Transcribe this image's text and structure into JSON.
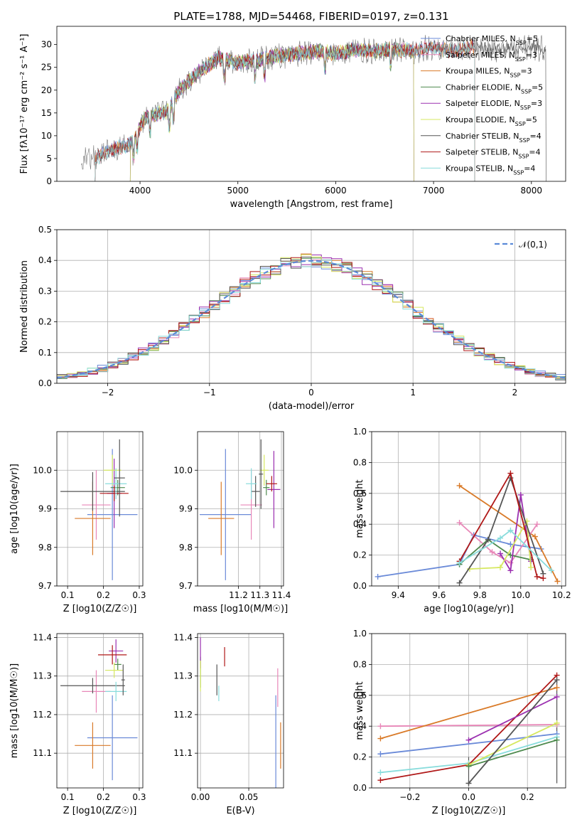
{
  "title": "PLATE=1788, MJD=54468, FIBERID=0197, z=0.131",
  "colors": {
    "Chabrier MILES": "#6a8ad8",
    "Salpeter MILES": "#e887b8",
    "Kroupa MILES": "#d97a28",
    "Chabrier ELODIE": "#4e8a4e",
    "Salpeter ELODIE": "#9b30b0",
    "Kroupa ELODIE": "#d6e860",
    "Chabrier STELIB": "#555555",
    "Salpeter STELIB": "#b01818",
    "Kroupa STELIB": "#88dcdc"
  },
  "chart_data": [
    {
      "id": "spectrum",
      "type": "line",
      "xlabel": "wavelength [Angstrom, rest frame]",
      "ylabel": "Flux [fλ10⁻¹⁷ erg cm⁻² s⁻¹ A⁻¹]",
      "xlim": [
        3150,
        8350
      ],
      "ylim": [
        0,
        34
      ],
      "xticks": [
        4000,
        5000,
        6000,
        7000,
        8000
      ],
      "yticks": [
        0,
        5,
        10,
        15,
        20,
        25,
        30
      ],
      "grid": false,
      "legend": "top-right",
      "continuum": [
        [
          3400,
          5.5
        ],
        [
          3550,
          5.0
        ],
        [
          3650,
          6.5
        ],
        [
          3800,
          7.5
        ],
        [
          3900,
          8.0
        ],
        [
          3950,
          9.5
        ],
        [
          4050,
          14.0
        ],
        [
          4300,
          15.5
        ],
        [
          4400,
          20.0
        ],
        [
          4600,
          24.0
        ],
        [
          4800,
          27.0
        ],
        [
          5000,
          26.0
        ],
        [
          5200,
          26.5
        ],
        [
          5400,
          27.5
        ],
        [
          5600,
          28.0
        ],
        [
          5800,
          28.5
        ],
        [
          6000,
          28.0
        ],
        [
          6200,
          28.8
        ],
        [
          6400,
          28.5
        ],
        [
          6600,
          29.0
        ],
        [
          6800,
          28.5
        ],
        [
          7000,
          29.5
        ],
        [
          7200,
          28.5
        ],
        [
          7400,
          29.5
        ],
        [
          7600,
          28.8
        ],
        [
          7800,
          29.0
        ],
        [
          8000,
          29.5
        ],
        [
          8150,
          29.0
        ]
      ],
      "series": [
        {
          "name": "Chabrier MILES, N_SSP=5",
          "start": 3540,
          "end": 7420
        },
        {
          "name": "Salpeter MILES, N_SSP=3",
          "start": 3540,
          "end": 7420
        },
        {
          "name": "Kroupa MILES, N_SSP=3",
          "start": 3540,
          "end": 7420
        },
        {
          "name": "Chabrier ELODIE, N_SSP=5",
          "start": 3900,
          "end": 6800
        },
        {
          "name": "Salpeter ELODIE, N_SSP=3",
          "start": 3900,
          "end": 6800
        },
        {
          "name": "Kroupa ELODIE, N_SSP=5",
          "start": 3900,
          "end": 6800
        },
        {
          "name": "Chabrier STELIB, N_SSP=4",
          "start": 3540,
          "end": 8150
        },
        {
          "name": "Salpeter STELIB, N_SSP=4",
          "start": 3540,
          "end": 7420
        },
        {
          "name": "Kroupa STELIB, N_SSP=4",
          "start": 3540,
          "end": 7420
        }
      ]
    },
    {
      "id": "residuals",
      "type": "histogram",
      "xlabel": "(data-model)/error",
      "ylabel": "Normed distribution",
      "xlim": [
        -2.5,
        2.5
      ],
      "ylim": [
        0,
        0.5
      ],
      "xticks": [
        -2,
        -1,
        0,
        1,
        2
      ],
      "yticks": [
        0.0,
        0.1,
        0.2,
        0.3,
        0.4,
        0.5
      ],
      "grid": true,
      "legend": "top-right",
      "reference": {
        "name": "𝒩(0,1)",
        "mean": 0,
        "sigma": 1
      }
    },
    {
      "id": "age-vs-Z",
      "type": "errorbar",
      "xlabel": "Z [log10(Z/Z☉)]",
      "ylabel": "age [log10(age/yr)]",
      "xlim": [
        0.07,
        0.31
      ],
      "ylim": [
        9.7,
        10.1
      ],
      "xticks": [
        0.1,
        0.2,
        0.3
      ],
      "yticks": [
        9.7,
        9.8,
        9.9,
        10.0
      ],
      "grid": true,
      "points": [
        {
          "model": "Chabrier MILES",
          "x": 0.225,
          "xerr": 0.07,
          "y": 9.885,
          "yerr": 0.17
        },
        {
          "model": "Salpeter MILES",
          "x": 0.18,
          "xerr": 0.04,
          "y": 9.91,
          "yerr": 0.09
        },
        {
          "model": "Kroupa MILES",
          "x": 0.17,
          "xerr": 0.05,
          "y": 9.875,
          "yerr": 0.095
        },
        {
          "model": "Chabrier ELODIE",
          "x": 0.24,
          "xerr": 0.02,
          "y": 9.955,
          "yerr": 0.02
        },
        {
          "model": "Salpeter ELODIE",
          "x": 0.23,
          "xerr": 0.02,
          "y": 9.94,
          "yerr": 0.09
        },
        {
          "model": "Kroupa ELODIE",
          "x": 0.225,
          "xerr": 0.025,
          "y": 10.0,
          "yerr": 0.04
        },
        {
          "model": "Chabrier STELIB",
          "x": 0.17,
          "xerr": 0.09,
          "y": 9.945,
          "yerr": 0.05
        },
        {
          "model": "Salpeter STELIB",
          "x": 0.23,
          "xerr": 0.04,
          "y": 9.94,
          "yerr": 0.02
        },
        {
          "model": "Kroupa STELIB",
          "x": 0.235,
          "xerr": 0.03,
          "y": 9.965,
          "yerr": 0.04
        },
        {
          "model": "Chabrier STELIB",
          "x": 0.245,
          "xerr": 0.015,
          "y": 9.98,
          "yerr": 0.1
        }
      ]
    },
    {
      "id": "age-vs-mass",
      "type": "errorbar",
      "xlabel": "mass [log10(M/M☉)]",
      "ylabel": "",
      "xlim": [
        11.01,
        11.41
      ],
      "ylim": [
        9.7,
        10.1
      ],
      "xticks": [
        11.2,
        11.3,
        11.4
      ],
      "yticks": [
        9.7,
        9.8,
        9.9,
        10.0
      ],
      "grid": true,
      "points": [
        {
          "model": "Chabrier MILES",
          "x": 11.14,
          "xerr": 0.12,
          "y": 9.885,
          "yerr": 0.17
        },
        {
          "model": "Salpeter MILES",
          "x": 11.26,
          "xerr": 0.05,
          "y": 9.91,
          "yerr": 0.09
        },
        {
          "model": "Kroupa MILES",
          "x": 11.12,
          "xerr": 0.06,
          "y": 9.875,
          "yerr": 0.095
        },
        {
          "model": "Chabrier ELODIE",
          "x": 11.33,
          "xerr": 0.015,
          "y": 9.955,
          "yerr": 0.02
        },
        {
          "model": "Salpeter ELODIE",
          "x": 11.365,
          "xerr": 0.03,
          "y": 9.95,
          "yerr": 0.1
        },
        {
          "model": "Kroupa ELODIE",
          "x": 11.32,
          "xerr": 0.02,
          "y": 10.0,
          "yerr": 0.04
        },
        {
          "model": "Chabrier STELIB",
          "x": 11.28,
          "xerr": 0.02,
          "y": 9.945,
          "yerr": 0.04
        },
        {
          "model": "Salpeter STELIB",
          "x": 11.355,
          "xerr": 0.025,
          "y": 9.965,
          "yerr": 0.02
        },
        {
          "model": "Kroupa STELIB",
          "x": 11.26,
          "xerr": 0.025,
          "y": 9.965,
          "yerr": 0.04
        },
        {
          "model": "Chabrier STELIB",
          "x": 11.305,
          "xerr": 0.01,
          "y": 9.99,
          "yerr": 0.09
        }
      ]
    },
    {
      "id": "weights-vs-age",
      "type": "line",
      "xlabel": "age [log10(age/yr)]",
      "ylabel": "mass weight",
      "xlim": [
        9.27,
        10.22
      ],
      "ylim": [
        0,
        1
      ],
      "xticks": [
        9.4,
        9.6,
        9.8,
        10.0,
        10.2
      ],
      "yticks": [
        0.0,
        0.2,
        0.4,
        0.6,
        0.8,
        1.0
      ],
      "grid": true,
      "series": [
        {
          "model": "Chabrier MILES",
          "x": [
            9.3,
            9.7,
            9.77,
            9.95,
            10.1
          ],
          "y": [
            0.06,
            0.14,
            0.33,
            0.27,
            0.24
          ]
        },
        {
          "model": "Kroupa MILES",
          "x": [
            9.7,
            10.07,
            10.18
          ],
          "y": [
            0.65,
            0.32,
            0.03
          ]
        },
        {
          "model": "Salpeter MILES",
          "x": [
            9.7,
            9.86,
            9.95,
            10.08
          ],
          "y": [
            0.41,
            0.22,
            0.15,
            0.4
          ]
        },
        {
          "model": "Chabrier ELODIE",
          "x": [
            9.7,
            9.84,
            9.95,
            10.05
          ],
          "y": [
            0.14,
            0.3,
            0.2,
            0.17
          ]
        },
        {
          "model": "Salpeter ELODIE",
          "x": [
            9.9,
            9.95,
            10.0,
            10.05
          ],
          "y": [
            0.21,
            0.1,
            0.59,
            0.16
          ]
        },
        {
          "model": "Kroupa ELODIE",
          "x": [
            9.75,
            9.9,
            10.03,
            10.05
          ],
          "y": [
            0.11,
            0.12,
            0.42,
            0.12
          ]
        },
        {
          "model": "Chabrier STELIB",
          "x": [
            9.7,
            9.84,
            9.95,
            10.11
          ],
          "y": [
            0.02,
            0.3,
            0.7,
            0.08
          ]
        },
        {
          "model": "Salpeter STELIB",
          "x": [
            9.7,
            9.95,
            10.08,
            10.11
          ],
          "y": [
            0.16,
            0.73,
            0.06,
            0.05
          ]
        },
        {
          "model": "Kroupa STELIB",
          "x": [
            9.7,
            9.9,
            9.95,
            10.15
          ],
          "y": [
            0.15,
            0.31,
            0.36,
            0.1
          ]
        }
      ]
    },
    {
      "id": "mass-vs-Z",
      "type": "errorbar",
      "xlabel": "Z [log10(Z/Z☉)]",
      "ylabel": "mass [log10(M/M☉)]",
      "xlim": [
        0.07,
        0.31
      ],
      "ylim": [
        11.01,
        11.41
      ],
      "xticks": [
        0.1,
        0.2,
        0.3
      ],
      "yticks": [
        11.1,
        11.2,
        11.3,
        11.4
      ],
      "grid": true,
      "points": [
        {
          "model": "Chabrier MILES",
          "x": 0.225,
          "xerr": 0.07,
          "y": 11.14,
          "yerr": 0.11
        },
        {
          "model": "Salpeter MILES",
          "x": 0.18,
          "xerr": 0.04,
          "y": 11.26,
          "yerr": 0.055
        },
        {
          "model": "Kroupa MILES",
          "x": 0.17,
          "xerr": 0.05,
          "y": 11.12,
          "yerr": 0.06
        },
        {
          "model": "Chabrier ELODIE",
          "x": 0.24,
          "xerr": 0.01,
          "y": 11.33,
          "yerr": 0.015
        },
        {
          "model": "Salpeter ELODIE",
          "x": 0.235,
          "xerr": 0.02,
          "y": 11.365,
          "yerr": 0.03
        },
        {
          "model": "Kroupa ELODIE",
          "x": 0.23,
          "xerr": 0.025,
          "y": 11.315,
          "yerr": 0.02
        },
        {
          "model": "Chabrier STELIB",
          "x": 0.17,
          "xerr": 0.09,
          "y": 11.275,
          "yerr": 0.02
        },
        {
          "model": "Salpeter STELIB",
          "x": 0.225,
          "xerr": 0.04,
          "y": 11.355,
          "yerr": 0.025
        },
        {
          "model": "Kroupa STELIB",
          "x": 0.235,
          "xerr": 0.03,
          "y": 11.26,
          "yerr": 0.025
        },
        {
          "model": "Chabrier STELIB",
          "x": 0.255,
          "xerr": 0.005,
          "y": 11.29,
          "yerr": 0.04
        }
      ]
    },
    {
      "id": "mass-vs-EBV",
      "type": "errorbar",
      "xlabel": "E(B-V)",
      "ylabel": "",
      "xlim": [
        -0.003,
        0.086
      ],
      "ylim": [
        11.01,
        11.41
      ],
      "xticks": [
        0.0,
        0.05
      ],
      "yticks": [
        11.1,
        11.2,
        11.3,
        11.4
      ],
      "grid": true,
      "points": [
        {
          "model": "Chabrier MILES",
          "x": 0.078,
          "xerr": 0,
          "y": 11.13,
          "yerr": 0.12
        },
        {
          "model": "Salpeter MILES",
          "x": 0.08,
          "xerr": 0,
          "y": 11.27,
          "yerr": 0.05
        },
        {
          "model": "Kroupa MILES",
          "x": 0.083,
          "xerr": 0,
          "y": 11.12,
          "yerr": 0.06
        },
        {
          "model": "Chabrier ELODIE",
          "x": 0.0,
          "xerr": 0,
          "y": 11.31,
          "yerr": 0.04
        },
        {
          "model": "Salpeter ELODIE",
          "x": 0.0,
          "xerr": 0,
          "y": 11.36,
          "yerr": 0.04
        },
        {
          "model": "Kroupa ELODIE",
          "x": 0.0,
          "xerr": 0,
          "y": 11.3,
          "yerr": 0.04
        },
        {
          "model": "Chabrier STELIB",
          "x": 0.017,
          "xerr": 0,
          "y": 11.29,
          "yerr": 0.04
        },
        {
          "model": "Salpeter STELIB",
          "x": 0.025,
          "xerr": 0,
          "y": 11.35,
          "yerr": 0.025
        },
        {
          "model": "Kroupa STELIB",
          "x": 0.019,
          "xerr": 0,
          "y": 11.255,
          "yerr": 0.02
        }
      ]
    },
    {
      "id": "weights-vs-Z",
      "type": "line",
      "xlabel": "Z [log10(Z/Z☉)]",
      "ylabel": "mass weight",
      "xlim": [
        -0.33,
        0.33
      ],
      "ylim": [
        0,
        1
      ],
      "xticks": [
        -0.2,
        0.0,
        0.2
      ],
      "yticks": [
        0.0,
        0.2,
        0.4,
        0.6,
        0.8,
        1.0
      ],
      "grid": true,
      "series": [
        {
          "model": "Salpeter MILES",
          "x": [
            -0.3,
            0.3
          ],
          "y": [
            0.4,
            0.41
          ]
        },
        {
          "model": "Kroupa MILES",
          "x": [
            -0.3,
            0.3
          ],
          "y": [
            0.32,
            0.65
          ]
        },
        {
          "model": "Chabrier MILES",
          "x": [
            -0.3,
            0.3
          ],
          "y": [
            0.22,
            0.35
          ]
        },
        {
          "model": "Kroupa STELIB",
          "x": [
            -0.3,
            0.0,
            0.3
          ],
          "y": [
            0.1,
            0.16,
            0.33
          ]
        },
        {
          "model": "Salpeter STELIB",
          "x": [
            -0.3,
            0.0,
            0.3
          ],
          "y": [
            0.05,
            0.15,
            0.73
          ]
        },
        {
          "model": "Salpeter ELODIE",
          "x": [
            0.0,
            0.3
          ],
          "y": [
            0.31,
            0.59
          ]
        },
        {
          "model": "Kroupa ELODIE",
          "x": [
            0.0,
            0.3
          ],
          "y": [
            0.15,
            0.42
          ]
        },
        {
          "model": "Chabrier ELODIE",
          "x": [
            0.0,
            0.3
          ],
          "y": [
            0.14,
            0.31
          ]
        },
        {
          "model": "Chabrier STELIB",
          "x": [
            0.0,
            0.3
          ],
          "y": [
            0.03,
            0.7
          ]
        }
      ],
      "vertical_markers": {
        "x": [
          0.0,
          0.3
        ],
        "y": [
          [
            0.02,
            0.2
          ],
          [
            0.03,
            0.7
          ]
        ]
      }
    }
  ]
}
